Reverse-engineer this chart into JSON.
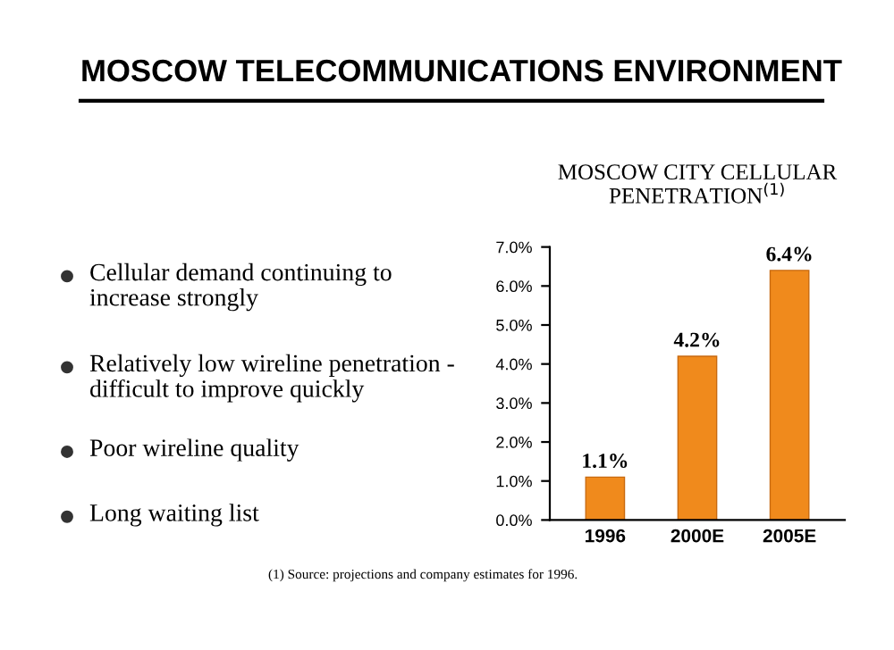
{
  "chart_data": [
    {
      "type": "other",
      "title": "MOSCOW TELECOMMUNICATIONS ENVIRONMENT",
      "annotations": [
        "Cellular demand continuing to increase strongly",
        "Relatively low wireline penetration - difficult to improve quickly",
        "Poor wireline quality",
        "Long waiting list",
        "(1) Source: projections and company estimates for 1996."
      ]
    },
    {
      "type": "bar",
      "title": "MOSCOW CITY CELLULAR PENETRATION$^{(1)}$",
      "categories": [
        "1996",
        "2000E",
        "2005E"
      ],
      "values": [
        1.1,
        4.2,
        6.4
      ],
      "value_labels": [
        "1.1%",
        "4.2%",
        "6.4%"
      ],
      "color": "#f08a1c",
      "ylim": [
        0,
        7
      ],
      "yticks": [
        {
          "value": 0,
          "label": "0.0%"
        },
        {
          "value": 1,
          "label": "1.0%"
        },
        {
          "value": 2,
          "label": "2.0%"
        },
        {
          "value": 3,
          "label": "3.0%"
        },
        {
          "value": 4,
          "label": "4.0%"
        },
        {
          "value": 5,
          "label": "5.0%"
        },
        {
          "value": 6,
          "label": "6.0%"
        },
        {
          "value": 7,
          "label": "7.0%"
        }
      ],
      "grid": false
    }
  ]
}
